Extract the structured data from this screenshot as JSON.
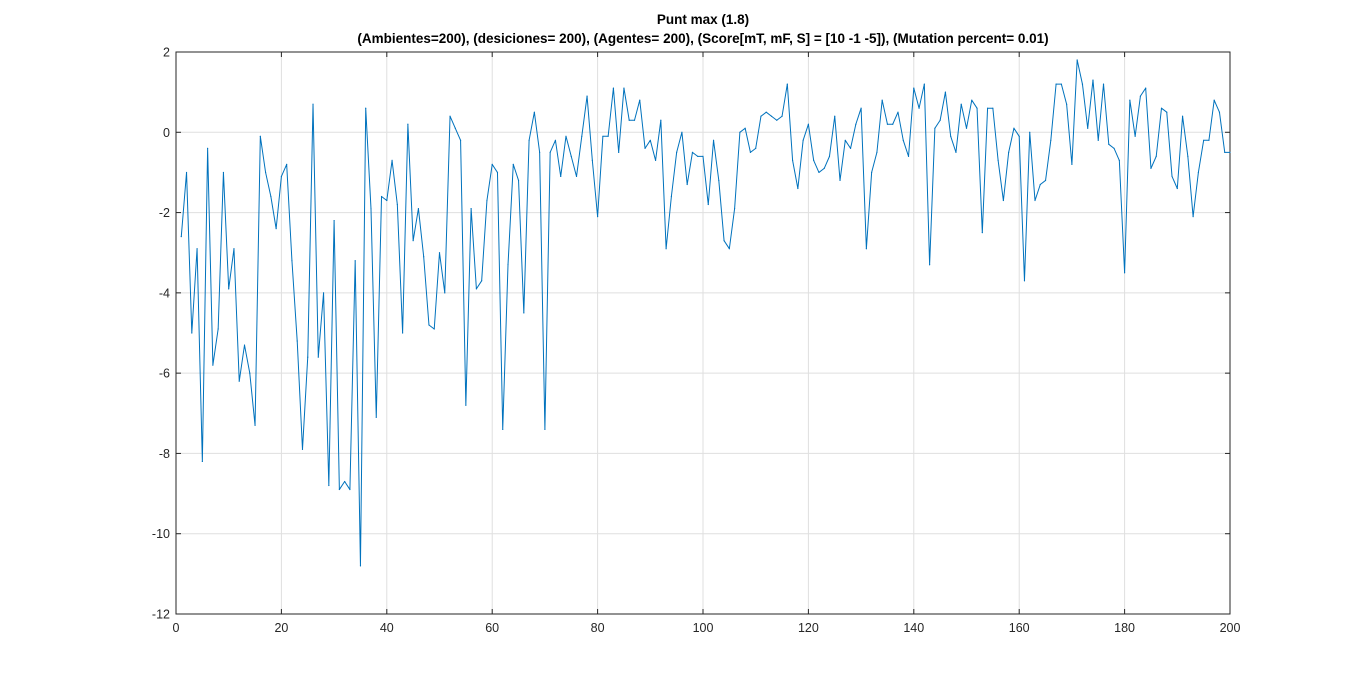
{
  "chart_data": {
    "type": "line",
    "title": "Punt max (1.8)",
    "subtitle": "(Ambientes=200),  (desiciones= 200), (Agentes= 200), (Score[mT, mF, S] = [10  -1  -5]), (Mutation percent= 0.01)",
    "xlabel": "",
    "ylabel": "",
    "xlim": [
      0,
      200
    ],
    "ylim": [
      -12,
      2
    ],
    "xticks": [
      0,
      20,
      40,
      60,
      80,
      100,
      120,
      140,
      160,
      180,
      200
    ],
    "yticks": [
      -12,
      -10,
      -8,
      -6,
      -4,
      -2,
      0,
      2
    ],
    "grid": true,
    "line_color": "#0072BD",
    "x": [
      1,
      2,
      3,
      4,
      5,
      6,
      7,
      8,
      9,
      10,
      11,
      12,
      13,
      14,
      15,
      16,
      17,
      18,
      19,
      20,
      21,
      22,
      23,
      24,
      25,
      26,
      27,
      28,
      29,
      30,
      31,
      32,
      33,
      34,
      35,
      36,
      37,
      38,
      39,
      40,
      41,
      42,
      43,
      44,
      45,
      46,
      47,
      48,
      49,
      50,
      51,
      52,
      53,
      54,
      55,
      56,
      57,
      58,
      59,
      60,
      61,
      62,
      63,
      64,
      65,
      66,
      67,
      68,
      69,
      70,
      71,
      72,
      73,
      74,
      75,
      76,
      77,
      78,
      79,
      80,
      81,
      82,
      83,
      84,
      85,
      86,
      87,
      88,
      89,
      90,
      91,
      92,
      93,
      94,
      95,
      96,
      97,
      98,
      99,
      100,
      101,
      102,
      103,
      104,
      105,
      106,
      107,
      108,
      109,
      110,
      111,
      112,
      113,
      114,
      115,
      116,
      117,
      118,
      119,
      120,
      121,
      122,
      123,
      124,
      125,
      126,
      127,
      128,
      129,
      130,
      131,
      132,
      133,
      134,
      135,
      136,
      137,
      138,
      139,
      140,
      141,
      142,
      143,
      144,
      145,
      146,
      147,
      148,
      149,
      150,
      151,
      152,
      153,
      154,
      155,
      156,
      157,
      158,
      159,
      160,
      161,
      162,
      163,
      164,
      165,
      166,
      167,
      168,
      169,
      170,
      171,
      172,
      173,
      174,
      175,
      176,
      177,
      178,
      179,
      180,
      181,
      182,
      183,
      184,
      185,
      186,
      187,
      188,
      189,
      190,
      191,
      192,
      193,
      194,
      195,
      196,
      197,
      198,
      199,
      200
    ],
    "y": [
      -2.6,
      -1.0,
      -5.0,
      -2.9,
      -8.2,
      -0.4,
      -5.8,
      -4.9,
      -1.0,
      -3.9,
      -2.9,
      -6.2,
      -5.3,
      -6.0,
      -7.3,
      -0.1,
      -1.0,
      -1.6,
      -2.4,
      -1.1,
      -0.8,
      -3.2,
      -5.2,
      -7.9,
      -5.6,
      0.7,
      -5.6,
      -4.0,
      -8.8,
      -2.2,
      -8.9,
      -8.7,
      -8.9,
      -3.2,
      -10.8,
      0.6,
      -1.9,
      -7.1,
      -1.6,
      -1.7,
      -0.7,
      -1.8,
      -5.0,
      0.2,
      -2.7,
      -1.9,
      -3.1,
      -4.8,
      -4.9,
      -3.0,
      -4.0,
      0.4,
      0.1,
      -0.2,
      -6.8,
      -1.9,
      -3.9,
      -3.7,
      -1.7,
      -0.8,
      -1.0,
      -7.4,
      -3.3,
      -0.8,
      -1.2,
      -4.5,
      -0.2,
      0.5,
      -0.5,
      -7.4,
      -0.5,
      -0.2,
      -1.1,
      -0.1,
      -0.6,
      -1.1,
      -0.1,
      0.9,
      -0.7,
      -2.1,
      -0.1,
      -0.1,
      1.1,
      -0.5,
      1.1,
      0.3,
      0.3,
      0.8,
      -0.4,
      -0.2,
      -0.7,
      0.3,
      -2.9,
      -1.6,
      -0.5,
      0.0,
      -1.3,
      -0.5,
      -0.6,
      -0.6,
      -1.8,
      -0.2,
      -1.2,
      -2.7,
      -2.9,
      -1.9,
      0.0,
      0.1,
      -0.5,
      -0.4,
      0.4,
      0.5,
      0.4,
      0.3,
      0.4,
      1.2,
      -0.7,
      -1.4,
      -0.2,
      0.2,
      -0.7,
      -1.0,
      -0.9,
      -0.6,
      0.4,
      -1.2,
      -0.2,
      -0.4,
      0.2,
      0.6,
      -2.9,
      -1.0,
      -0.5,
      0.8,
      0.2,
      0.2,
      0.5,
      -0.2,
      -0.6,
      1.1,
      0.6,
      1.2,
      -3.3,
      0.1,
      0.3,
      1.0,
      -0.1,
      -0.5,
      0.7,
      0.1,
      0.8,
      0.6,
      -2.5,
      0.6,
      0.6,
      -0.7,
      -1.7,
      -0.5,
      0.1,
      -0.1,
      -3.7,
      0.0,
      -1.7,
      -1.3,
      -1.2,
      -0.2,
      1.2,
      1.2,
      0.7,
      -0.8,
      1.8,
      1.2,
      0.1,
      1.3,
      -0.2,
      1.2,
      -0.3,
      -0.4,
      -0.7,
      -3.5,
      0.8,
      -0.1,
      0.9,
      1.1,
      -0.9,
      -0.6,
      0.6,
      0.5,
      -1.1,
      -1.4,
      0.4,
      -0.6,
      -2.1,
      -1.0,
      -0.2,
      -0.2,
      0.8,
      0.5,
      -0.5,
      -0.5
    ]
  }
}
